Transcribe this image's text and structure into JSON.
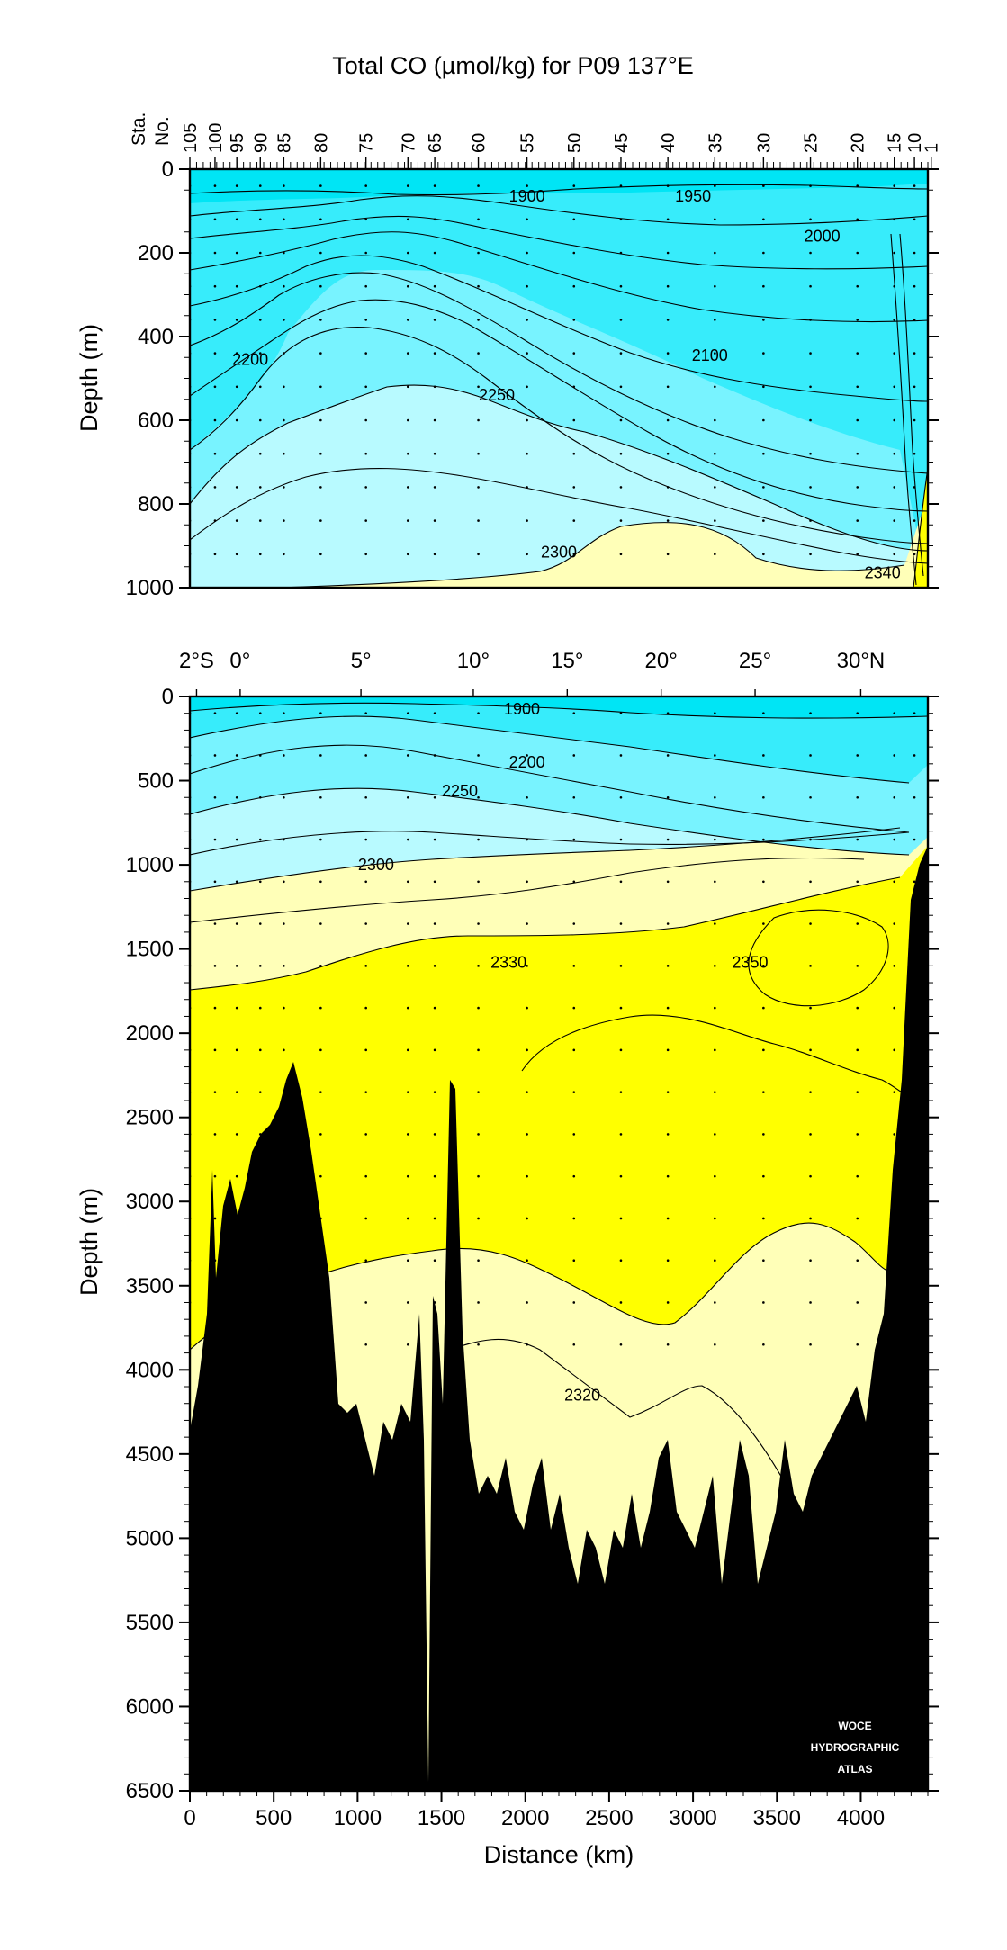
{
  "title": "Total CO  (µmol/kg) for P09 137°E",
  "colors": {
    "c1": "#00E5F5",
    "c2": "#37ECFB",
    "c3": "#78F3FF",
    "c4": "#B8FAFF",
    "c5": "#FFFFB8",
    "c6": "#FFFF00",
    "bottom": "#000000"
  },
  "chart_data": [
    {
      "type": "contour",
      "panel": "upper",
      "ylabel": "Depth (m)",
      "ylim": [
        1000,
        0
      ],
      "xlim": [
        0,
        4400
      ],
      "yticks": [
        "0",
        "200",
        "400",
        "600",
        "800",
        "1000"
      ],
      "station_axis": {
        "label_line1": "Sta.",
        "label_line2": "No.",
        "stations": [
          {
            "label": "105",
            "km": 0
          },
          {
            "label": "100",
            "km": 150
          },
          {
            "label": "95",
            "km": 280
          },
          {
            "label": "90",
            "km": 420
          },
          {
            "label": "85",
            "km": 560
          },
          {
            "label": "80",
            "km": 780
          },
          {
            "label": "75",
            "km": 1050
          },
          {
            "label": "70",
            "km": 1300
          },
          {
            "label": "65",
            "km": 1460
          },
          {
            "label": "60",
            "km": 1720
          },
          {
            "label": "55",
            "km": 2010
          },
          {
            "label": "50",
            "km": 2290
          },
          {
            "label": "45",
            "km": 2570
          },
          {
            "label": "40",
            "km": 2850
          },
          {
            "label": "35",
            "km": 3130
          },
          {
            "label": "30",
            "km": 3420
          },
          {
            "label": "25",
            "km": 3700
          },
          {
            "label": "20",
            "km": 3980
          },
          {
            "label": "15",
            "km": 4200
          },
          {
            "label": "10",
            "km": 4320
          },
          {
            "label": "1",
            "km": 4420
          }
        ]
      },
      "contour_labels": [
        {
          "text": "1900",
          "km": 2010,
          "depth": 65
        },
        {
          "text": "1950",
          "km": 3000,
          "depth": 65
        },
        {
          "text": "2000",
          "km": 3770,
          "depth": 160
        },
        {
          "text": "2100",
          "km": 3100,
          "depth": 445
        },
        {
          "text": "2200",
          "km": 360,
          "depth": 455
        },
        {
          "text": "2250",
          "km": 1830,
          "depth": 540
        },
        {
          "text": "2300",
          "km": 2200,
          "depth": 915
        },
        {
          "text": "2340",
          "km": 4130,
          "depth": 965
        }
      ]
    },
    {
      "type": "contour",
      "panel": "lower",
      "xlabel": "Distance (km)",
      "ylabel": "Depth (m)",
      "ylim": [
        6500,
        0
      ],
      "xlim": [
        0,
        4400
      ],
      "xticks": [
        "0",
        "500",
        "1000",
        "1500",
        "2000",
        "2500",
        "3000",
        "3500",
        "4000"
      ],
      "yticks": [
        "0",
        "500",
        "1000",
        "1500",
        "2000",
        "2500",
        "3000",
        "3500",
        "4000",
        "4500",
        "5000",
        "5500",
        "6000",
        "6500"
      ],
      "latitude_axis": [
        {
          "label": "2°S",
          "km": 40
        },
        {
          "label": "0°",
          "km": 300
        },
        {
          "label": "5°",
          "km": 1020
        },
        {
          "label": "10°",
          "km": 1690
        },
        {
          "label": "15°",
          "km": 2250
        },
        {
          "label": "20°",
          "km": 2810
        },
        {
          "label": "25°",
          "km": 3370
        },
        {
          "label": "30°N",
          "km": 4000
        }
      ],
      "contour_labels": [
        {
          "text": "1900",
          "km": 1980,
          "depth": 75
        },
        {
          "text": "2200",
          "km": 2010,
          "depth": 390
        },
        {
          "text": "2250",
          "km": 1610,
          "depth": 560
        },
        {
          "text": "2300",
          "km": 1110,
          "depth": 1000
        },
        {
          "text": "2330",
          "km": 1900,
          "depth": 1580
        },
        {
          "text": "2350",
          "km": 3340,
          "depth": 1580
        },
        {
          "text": "2320",
          "km": 2340,
          "depth": 4150
        }
      ],
      "watermark": [
        "WOCE",
        "HYDROGRAPHIC",
        "ATLAS"
      ]
    }
  ]
}
